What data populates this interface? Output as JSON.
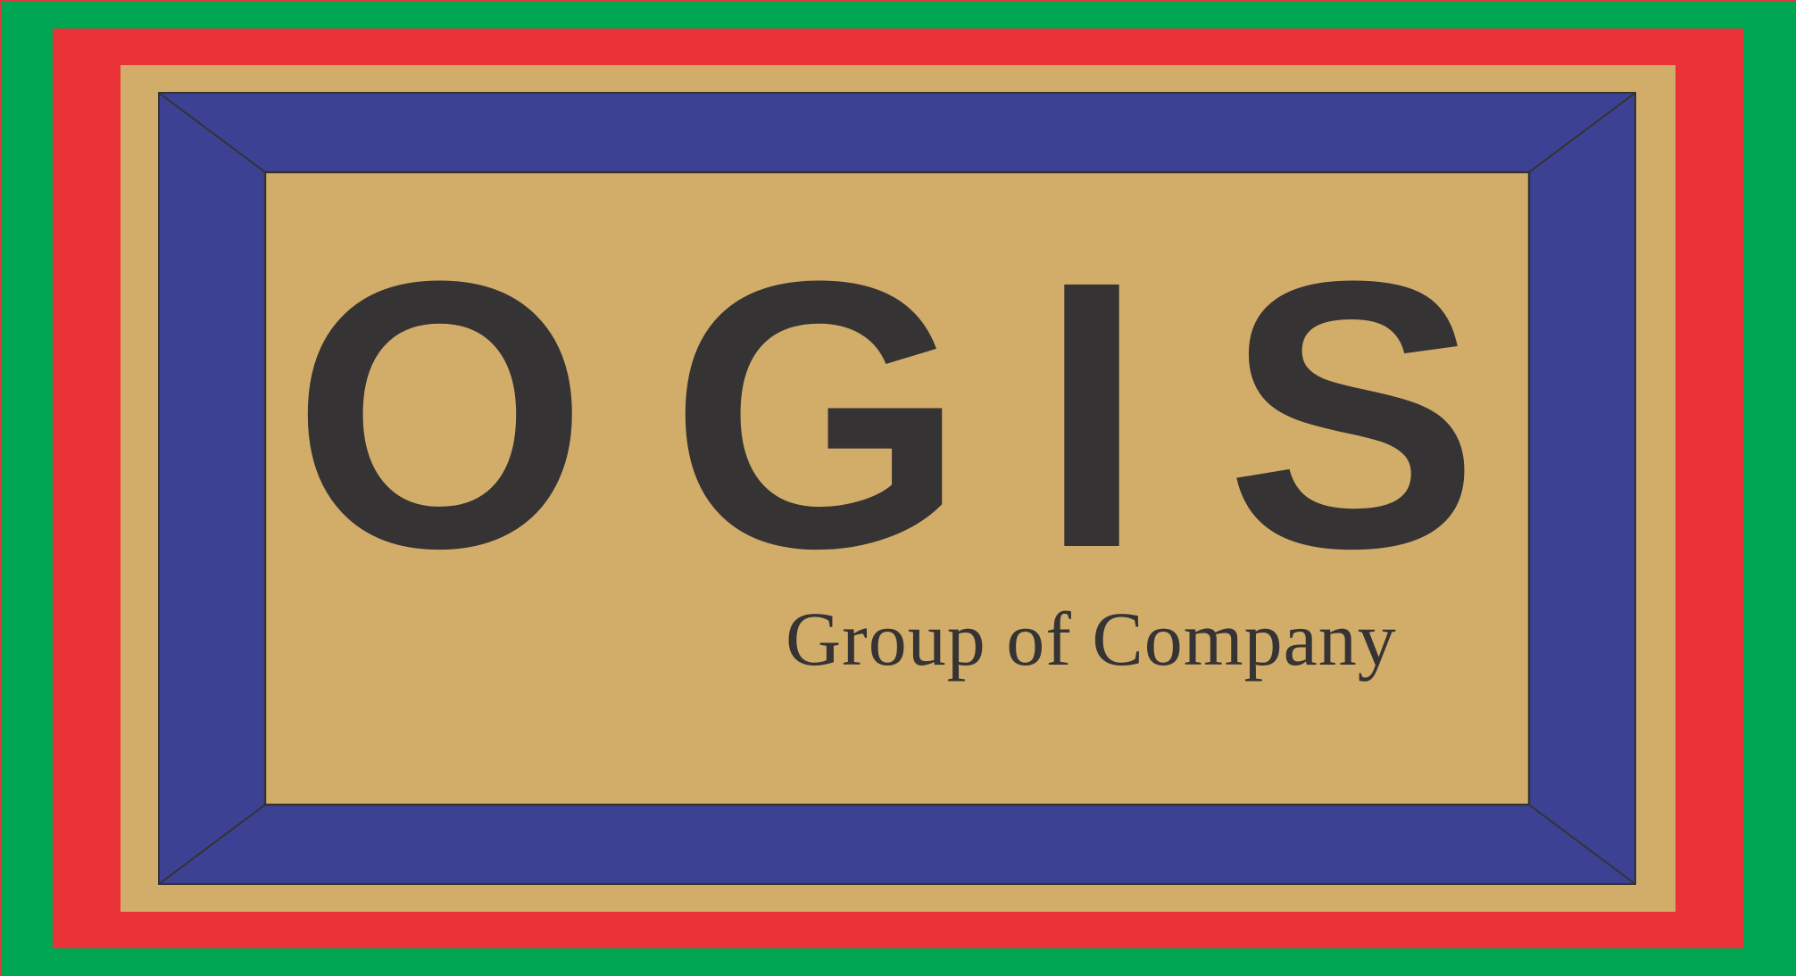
{
  "logo": {
    "letters": [
      "O",
      "G",
      "I",
      "S"
    ],
    "tagline": "Group of Company"
  },
  "colors": {
    "outer_border": "#00A651",
    "middle_border": "#E93338",
    "background": "#D2AD6A",
    "frame": "#3D4193",
    "ink": "#363334",
    "frame_line": "#333333"
  }
}
